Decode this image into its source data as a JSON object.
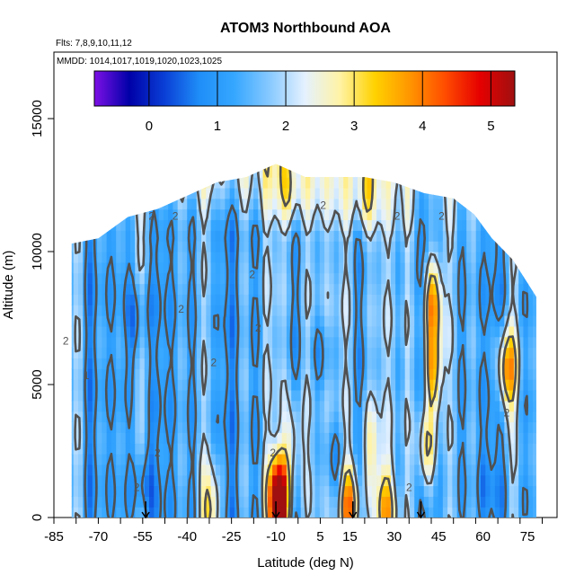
{
  "chart_data": {
    "type": "heatmap",
    "title": "ATOM3 Northbound AOA",
    "subtitle_lines": [
      "Flts: 7,8,9,10,11,12",
      "MMDD: 1014,1017,1019,1020,1023,1025"
    ],
    "xlabel": "Latitude (deg N)",
    "ylabel": "Altitude (m)",
    "xlim": [
      -85,
      85
    ],
    "ylim": [
      0,
      17500
    ],
    "x_ticks": [
      -85,
      -70,
      -55,
      -40,
      -25,
      -10,
      5,
      15,
      30,
      45,
      60,
      75
    ],
    "y_ticks": [
      0,
      5000,
      10000,
      15000
    ],
    "colorbar": {
      "range": [
        -0.8,
        5.35
      ],
      "ticks": [
        0,
        1,
        2,
        3,
        4,
        5
      ],
      "stops": [
        "#7d10e6",
        "#0000a8",
        "#0a3fd6",
        "#1f8ef8",
        "#36a7ff",
        "#87c9ff",
        "#e4f1ff",
        "#fff3a6",
        "#ffd200",
        "#ff9600",
        "#ff4d00",
        "#e60000",
        "#a01010"
      ]
    },
    "coverage": [
      {
        "x": -79,
        "top": 10300
      },
      {
        "x": -70,
        "top": 10500
      },
      {
        "x": -60,
        "top": 11300
      },
      {
        "x": -50,
        "top": 11600
      },
      {
        "x": -40,
        "top": 12100
      },
      {
        "x": -30,
        "top": 12600
      },
      {
        "x": -20,
        "top": 12800
      },
      {
        "x": -10,
        "top": 13300
      },
      {
        "x": 0,
        "top": 12800
      },
      {
        "x": 10,
        "top": 12800
      },
      {
        "x": 20,
        "top": 12800
      },
      {
        "x": 30,
        "top": 12600
      },
      {
        "x": 40,
        "top": 12200
      },
      {
        "x": 50,
        "top": 12000
      },
      {
        "x": 57,
        "top": 11400
      },
      {
        "x": 63,
        "top": 10500
      },
      {
        "x": 70,
        "top": 9700
      },
      {
        "x": 78,
        "top": 8300
      }
    ],
    "anomalies": [
      {
        "x": 43,
        "y": 8200,
        "value": 4.1
      },
      {
        "x": 43,
        "y": 5500,
        "value": 3.9
      },
      {
        "x": 41,
        "y": 2500,
        "value": 3.4
      },
      {
        "x": 68,
        "y": 5500,
        "value": 3.8
      },
      {
        "x": -9,
        "y": 300,
        "value": 4.8
      },
      {
        "x": -9,
        "y": 900,
        "value": 3.3
      },
      {
        "x": 15,
        "y": 500,
        "value": 3.6
      },
      {
        "x": 27,
        "y": 300,
        "value": 3.1
      },
      {
        "x": -32,
        "y": 250,
        "value": 3.0
      },
      {
        "x": 20,
        "y": 12300,
        "value": 2.6
      },
      {
        "x": -5,
        "y": 12300,
        "value": 2.4
      },
      {
        "x": -4,
        "y": 3000,
        "value": 2.6
      },
      {
        "x": 22,
        "y": 2600,
        "value": 2.4
      },
      {
        "x": -57,
        "y": 7200,
        "value": 0.4
      },
      {
        "x": -55,
        "y": 1400,
        "value": 0.3
      },
      {
        "x": 10,
        "y": 2000,
        "value": 0.5
      },
      {
        "x": 5,
        "y": 6000,
        "value": 0.6
      },
      {
        "x": 60,
        "y": 1500,
        "value": 1.0
      }
    ],
    "contour_labels": [
      {
        "x": -81,
        "y": 6500,
        "text": "2"
      },
      {
        "x": -74,
        "y": 5200,
        "text": "1"
      },
      {
        "x": -57,
        "y": 1000,
        "text": "2"
      },
      {
        "x": -50,
        "y": 2300,
        "text": "2"
      },
      {
        "x": -42,
        "y": 7700,
        "text": "2"
      },
      {
        "x": -31,
        "y": 5700,
        "text": "2"
      },
      {
        "x": -52,
        "y": 11200,
        "text": "2"
      },
      {
        "x": -44,
        "y": 11200,
        "text": "2"
      },
      {
        "x": -18,
        "y": 9000,
        "text": "2"
      },
      {
        "x": -11,
        "y": 2300,
        "text": "2"
      },
      {
        "x": -16,
        "y": 7000,
        "text": "2"
      },
      {
        "x": 6,
        "y": 11600,
        "text": "2"
      },
      {
        "x": 31,
        "y": 11200,
        "text": "2"
      },
      {
        "x": 46,
        "y": 11200,
        "text": "2"
      },
      {
        "x": 68,
        "y": 3800,
        "text": "2"
      },
      {
        "x": 35,
        "y": 1000,
        "text": "2"
      }
    ],
    "arrows_x": [
      -54,
      -10,
      16,
      39
    ]
  }
}
